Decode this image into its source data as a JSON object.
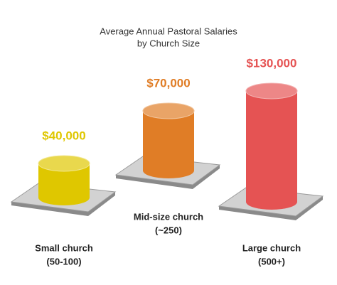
{
  "chart_data": {
    "type": "cylinder",
    "title": [
      "Average Annual Pastoral Salaries",
      "by Church Size"
    ],
    "categories": [
      [
        "Small church",
        "(50-100)"
      ],
      [
        "Mid-size church",
        "(~250)"
      ],
      [
        "Large church",
        "(500+)"
      ]
    ],
    "values": [
      40000,
      70000,
      130000
    ],
    "value_labels": [
      "$40,000",
      "$70,000",
      "$130,000"
    ],
    "colors": [
      "#dfc700",
      "#e07d26",
      "#e55353"
    ]
  }
}
